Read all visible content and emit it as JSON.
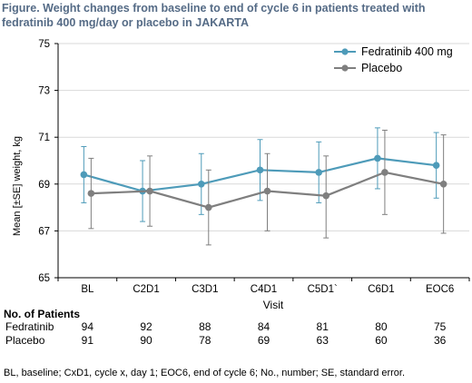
{
  "title": "Figure. Weight changes from baseline to end of cycle 6  in patients treated with fedratinib 400 mg/day or placebo in JAKARTA",
  "chart_data": {
    "type": "line",
    "categories": [
      "BL",
      "C2D1",
      "C3D1",
      "C4D1",
      "C5D1`",
      "C6D1",
      "EOC6"
    ],
    "xlabel": "Visit",
    "ylabel": "Mean [±SE] weight, kg",
    "ylim": [
      65,
      75
    ],
    "yticks": [
      65,
      67,
      69,
      71,
      73,
      75
    ],
    "legend_position": "top-right",
    "series": [
      {
        "name": "Fedratinib 400 mg",
        "color": "#4e9bb9",
        "values": [
          69.4,
          68.7,
          69.0,
          69.6,
          69.5,
          70.1,
          69.8
        ],
        "error_low": [
          68.2,
          67.4,
          67.7,
          68.3,
          68.2,
          68.8,
          68.4
        ],
        "error_high": [
          70.6,
          70.0,
          70.3,
          70.9,
          70.8,
          71.4,
          71.2
        ]
      },
      {
        "name": "Placebo",
        "color": "#7f7f7f",
        "values": [
          68.6,
          68.7,
          68.0,
          68.7,
          68.5,
          69.5,
          69.0
        ],
        "error_low": [
          67.1,
          67.2,
          66.4,
          67.0,
          66.7,
          67.7,
          66.9
        ],
        "error_high": [
          70.1,
          70.2,
          69.6,
          70.3,
          70.2,
          71.3,
          71.1
        ]
      }
    ]
  },
  "patients": {
    "title": "No. of Patients",
    "rows": [
      {
        "label": "Fedratinib",
        "values": [
          "94",
          "92",
          "88",
          "84",
          "81",
          "80",
          "75"
        ]
      },
      {
        "label": "Placebo",
        "values": [
          "91",
          "90",
          "78",
          "69",
          "63",
          "60",
          "36"
        ]
      }
    ]
  },
  "footnote": "BL, baseline; CxD1, cycle x, day 1; EOC6, end of cycle 6; No., number; SE, standard error."
}
